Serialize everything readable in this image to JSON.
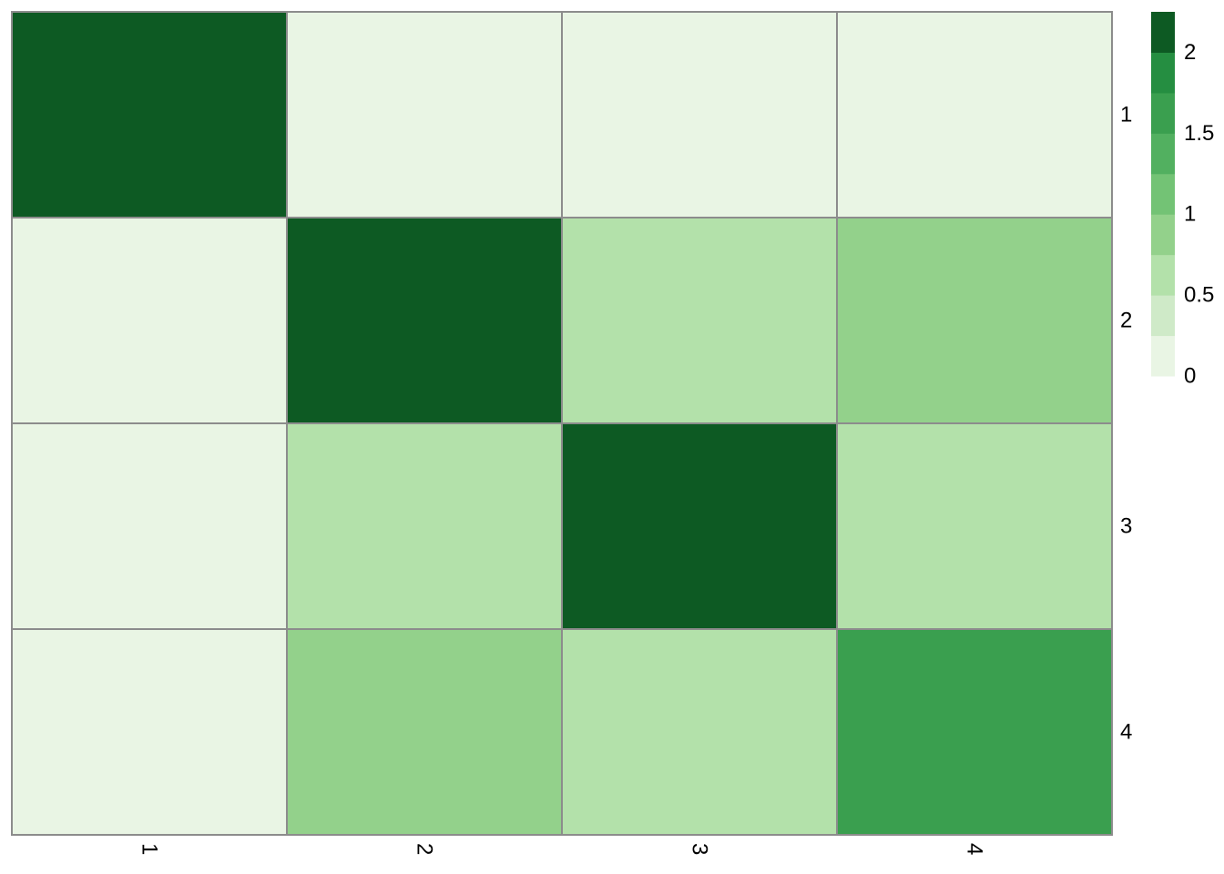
{
  "chart_data": {
    "type": "heatmap",
    "title": "",
    "xlabel": "",
    "ylabel": "",
    "x_categories": [
      "1",
      "2",
      "3",
      "4"
    ],
    "y_categories": [
      "1",
      "2",
      "3",
      "4"
    ],
    "values": [
      [
        2.2,
        0.1,
        0.1,
        0.1
      ],
      [
        0.1,
        2.2,
        0.6,
        0.8
      ],
      [
        0.1,
        0.6,
        2.0,
        0.6
      ],
      [
        0.1,
        0.8,
        0.6,
        1.7
      ]
    ],
    "cell_border_color": "#8c8c8c",
    "colorbar": {
      "tick_labels": [
        "2",
        "1.5",
        "1",
        "0.5",
        "0"
      ],
      "tick_values": [
        2,
        1.5,
        1,
        0.5,
        0
      ],
      "range": [
        0,
        2.25
      ],
      "bins": [
        {
          "from": 0.0,
          "to": 0.25,
          "color": "#e9f5e4"
        },
        {
          "from": 0.25,
          "to": 0.5,
          "color": "#cfeac8"
        },
        {
          "from": 0.5,
          "to": 0.75,
          "color": "#b3e1aa"
        },
        {
          "from": 0.75,
          "to": 1.0,
          "color": "#93d18b"
        },
        {
          "from": 1.0,
          "to": 1.25,
          "color": "#73c375"
        },
        {
          "from": 1.25,
          "to": 1.5,
          "color": "#52b060"
        },
        {
          "from": 1.5,
          "to": 1.75,
          "color": "#3a9f4f"
        },
        {
          "from": 1.75,
          "to": 2.0,
          "color": "#258e41"
        },
        {
          "from": 2.0,
          "to": 2.25,
          "color": "#0d5a23"
        }
      ]
    },
    "legend_position": "right"
  }
}
